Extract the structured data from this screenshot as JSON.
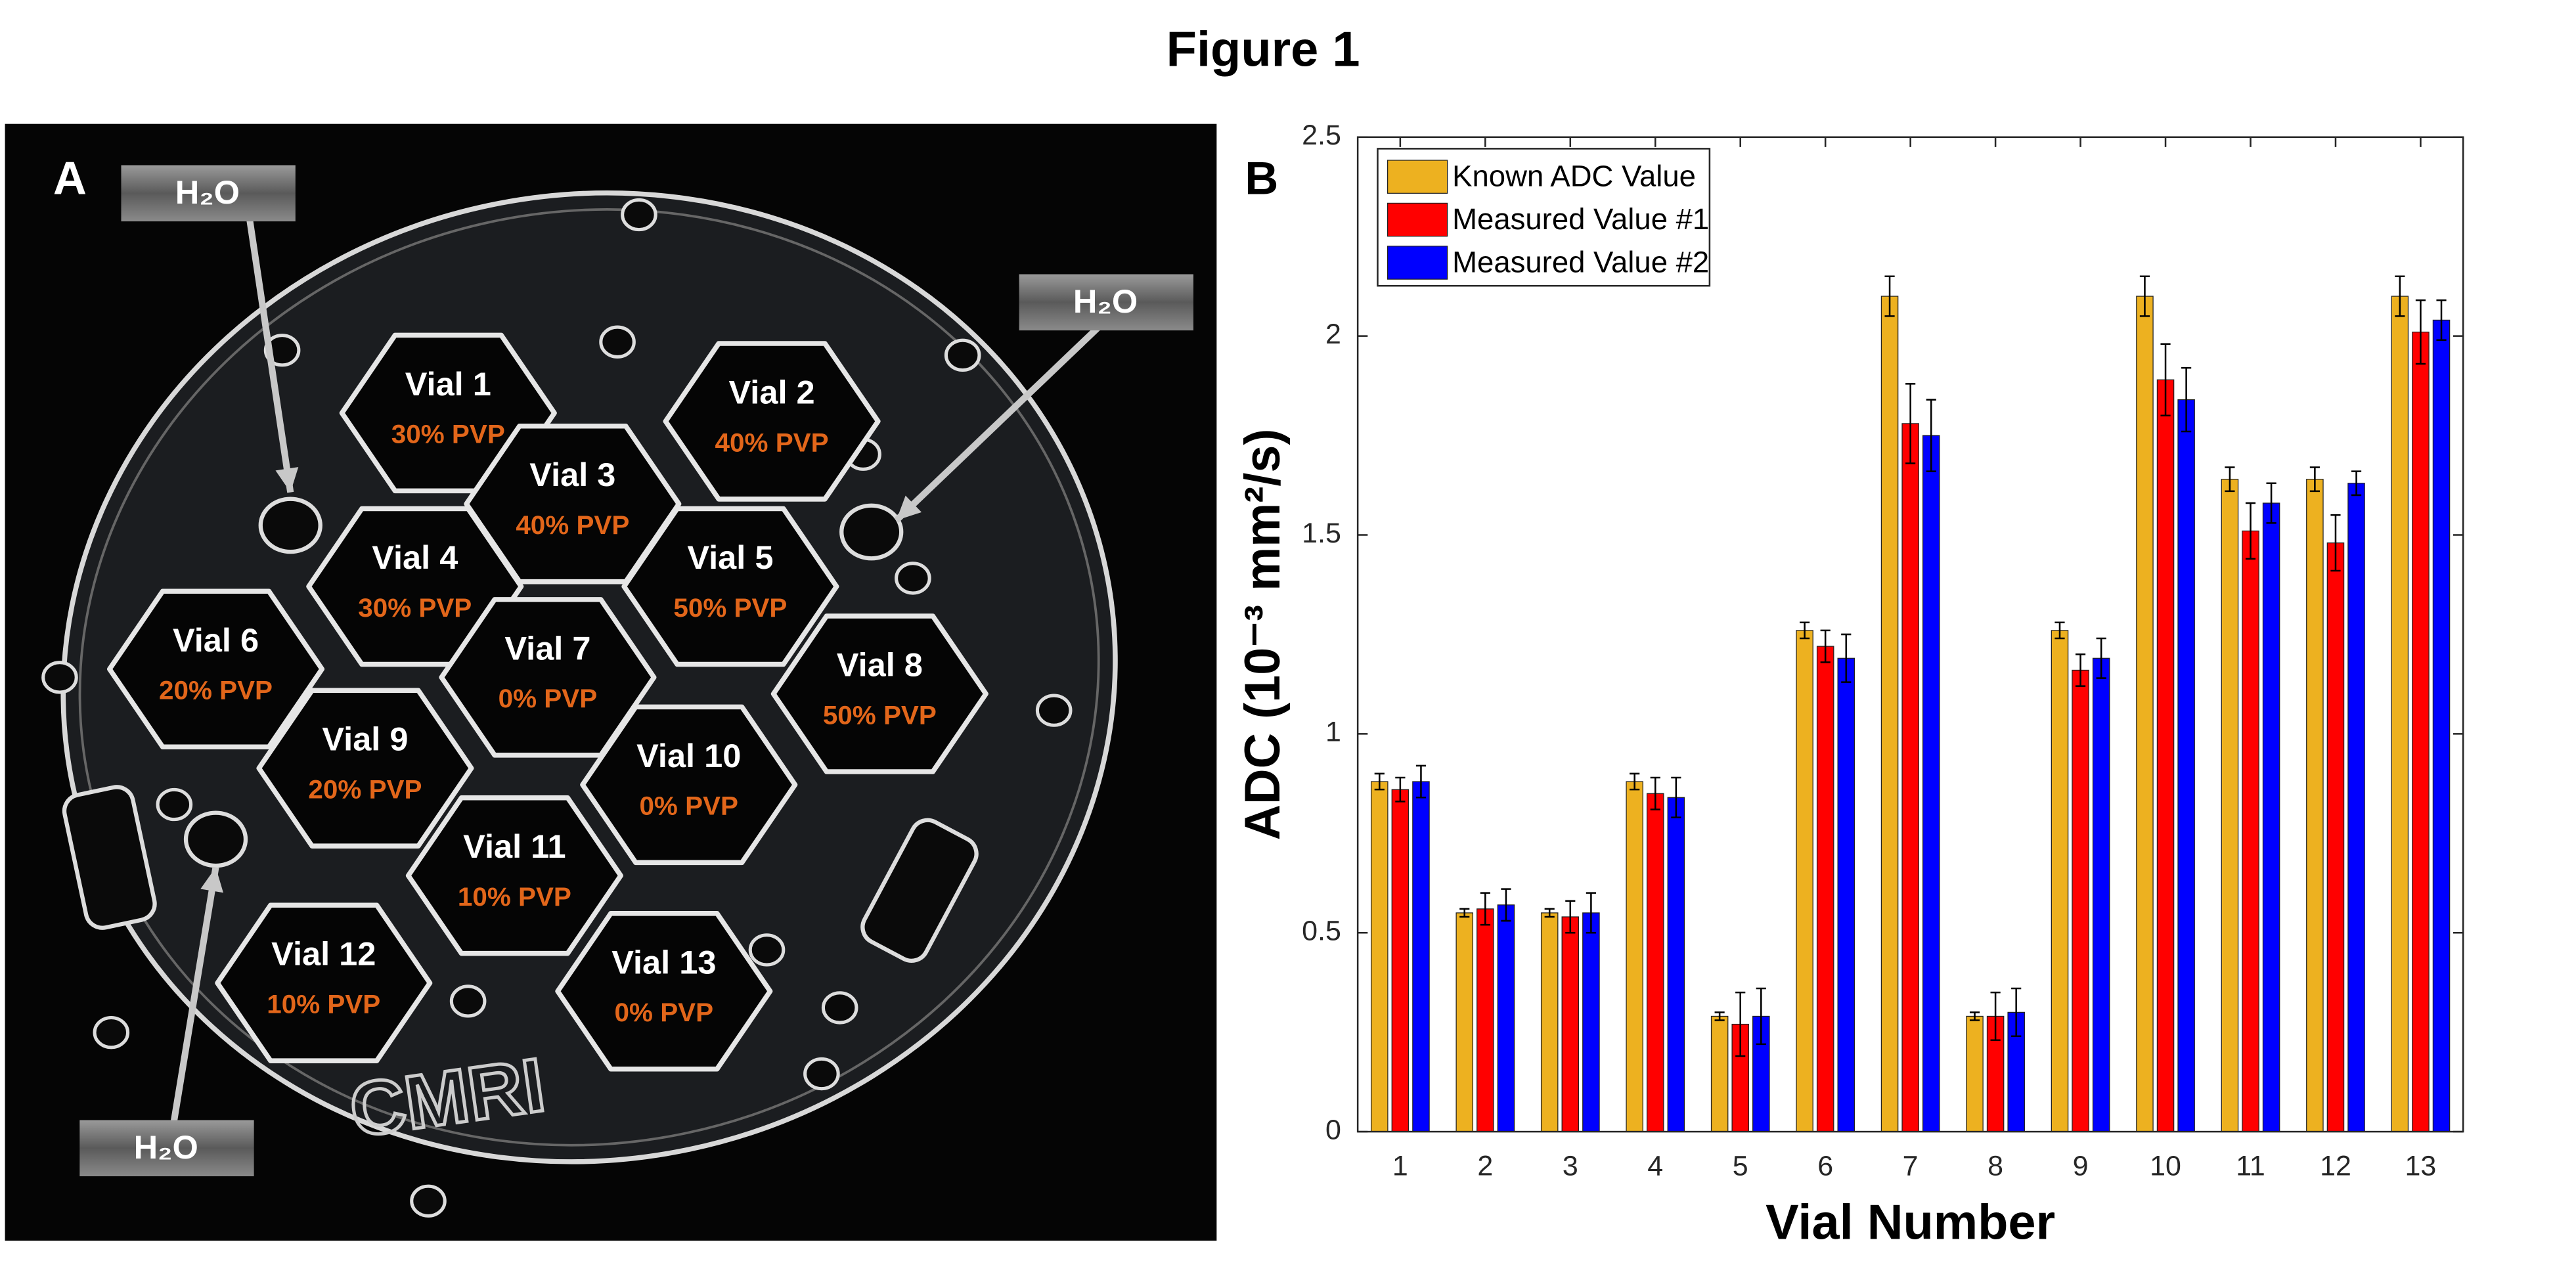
{
  "figure_title": "Figure 1",
  "panel_a": {
    "label": "A",
    "water_labels": [
      "H₂O",
      "H₂O",
      "H₂O"
    ],
    "logo": "CMRI",
    "vials": [
      {
        "name": "Vial 1",
        "pvp": "30% PVP"
      },
      {
        "name": "Vial 2",
        "pvp": "40% PVP"
      },
      {
        "name": "Vial 3",
        "pvp": "40% PVP"
      },
      {
        "name": "Vial 4",
        "pvp": "30% PVP"
      },
      {
        "name": "Vial 5",
        "pvp": "50% PVP"
      },
      {
        "name": "Vial 6",
        "pvp": "20% PVP"
      },
      {
        "name": "Vial 7",
        "pvp": "0% PVP"
      },
      {
        "name": "Vial 8",
        "pvp": "50% PVP"
      },
      {
        "name": "Vial 9",
        "pvp": "20% PVP"
      },
      {
        "name": "Vial 10",
        "pvp": "0% PVP"
      },
      {
        "name": "Vial 11",
        "pvp": "10% PVP"
      },
      {
        "name": "Vial 12",
        "pvp": "10% PVP"
      },
      {
        "name": "Vial 13",
        "pvp": "0% PVP"
      }
    ]
  },
  "chart_data": {
    "type": "bar",
    "panel_label": "B",
    "x_label": "Vial Number",
    "y_label": "ADC (10⁻³ mm²/s)",
    "categories": [
      "1",
      "2",
      "3",
      "4",
      "5",
      "6",
      "7",
      "8",
      "9",
      "10",
      "11",
      "12",
      "13"
    ],
    "series": [
      {
        "name": "Known ADC Value",
        "color": "#edb120",
        "values": [
          0.88,
          0.55,
          0.55,
          0.88,
          0.29,
          1.26,
          2.1,
          0.29,
          1.26,
          2.1,
          1.64,
          1.64,
          2.1
        ],
        "errors": [
          0.02,
          0.01,
          0.01,
          0.02,
          0.01,
          0.02,
          0.05,
          0.01,
          0.02,
          0.05,
          0.03,
          0.03,
          0.05
        ]
      },
      {
        "name": "Measured Value #1",
        "color": "#ff0000",
        "values": [
          0.86,
          0.56,
          0.54,
          0.85,
          0.27,
          1.22,
          1.78,
          0.29,
          1.16,
          1.89,
          1.51,
          1.48,
          2.01
        ],
        "errors": [
          0.03,
          0.04,
          0.04,
          0.04,
          0.08,
          0.04,
          0.1,
          0.06,
          0.04,
          0.09,
          0.07,
          0.07,
          0.08
        ]
      },
      {
        "name": "Measured Value #2",
        "color": "#0000ff",
        "values": [
          0.88,
          0.57,
          0.55,
          0.84,
          0.29,
          1.19,
          1.75,
          0.3,
          1.19,
          1.84,
          1.58,
          1.63,
          2.04
        ],
        "errors": [
          0.04,
          0.04,
          0.05,
          0.05,
          0.07,
          0.06,
          0.09,
          0.06,
          0.05,
          0.08,
          0.05,
          0.03,
          0.05
        ]
      }
    ],
    "ylim": [
      0,
      2.5
    ],
    "yticks": [
      0,
      0.5,
      1,
      1.5,
      2,
      2.5
    ],
    "grid": false,
    "legend": "upper-left"
  }
}
